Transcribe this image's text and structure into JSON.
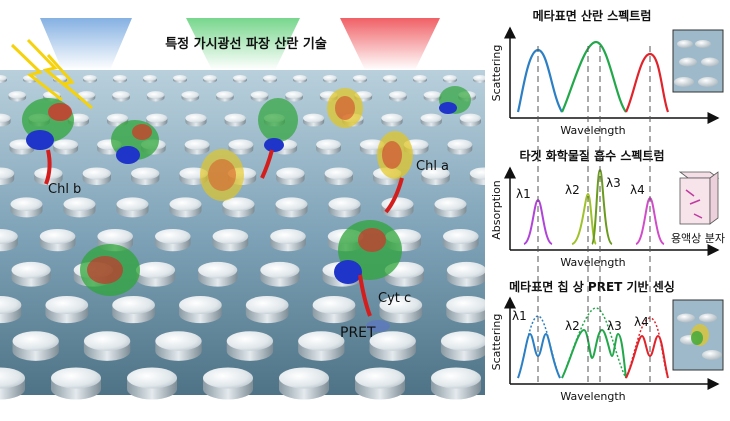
{
  "scene": {
    "title": "특정 가시광선 파장 산란 기술",
    "labels": {
      "chl_b": "Chl b",
      "chl_a": "Chl a",
      "cyt_c": "Cyt c",
      "pret": "PRET"
    },
    "beam_colors": [
      "#7fb2e6",
      "#7fd68f",
      "#f06b6b"
    ]
  },
  "panels": {
    "p1": {
      "title": "메타표면 산란 스펙트럼",
      "ylabel": "Scattering",
      "xlabel": "Wavelength",
      "peak_colors": [
        "#2b7fc4",
        "#22a84a",
        "#e0242b"
      ]
    },
    "p2": {
      "title": "타겟 화학물질 흡수 스펙트럼",
      "ylabel": "Absorption",
      "xlabel": "Wavelength",
      "lambdas": [
        "λ1",
        "λ2",
        "λ3",
        "λ4"
      ],
      "peak_colors": [
        "#b044d8",
        "#9fc22a",
        "#6a9a1e",
        "#d04cc8"
      ],
      "inset_label": "용액상 분자"
    },
    "p3": {
      "title": "메타표면 칩 상 PRET 기반 센싱",
      "ylabel": "Scattering",
      "xlabel": "Wavelength",
      "lambdas": [
        "λ1",
        "λ2",
        "λ3",
        "λ4"
      ],
      "peak_colors": [
        "#2b7fc4",
        "#22a84a",
        "#e0242b"
      ]
    }
  }
}
